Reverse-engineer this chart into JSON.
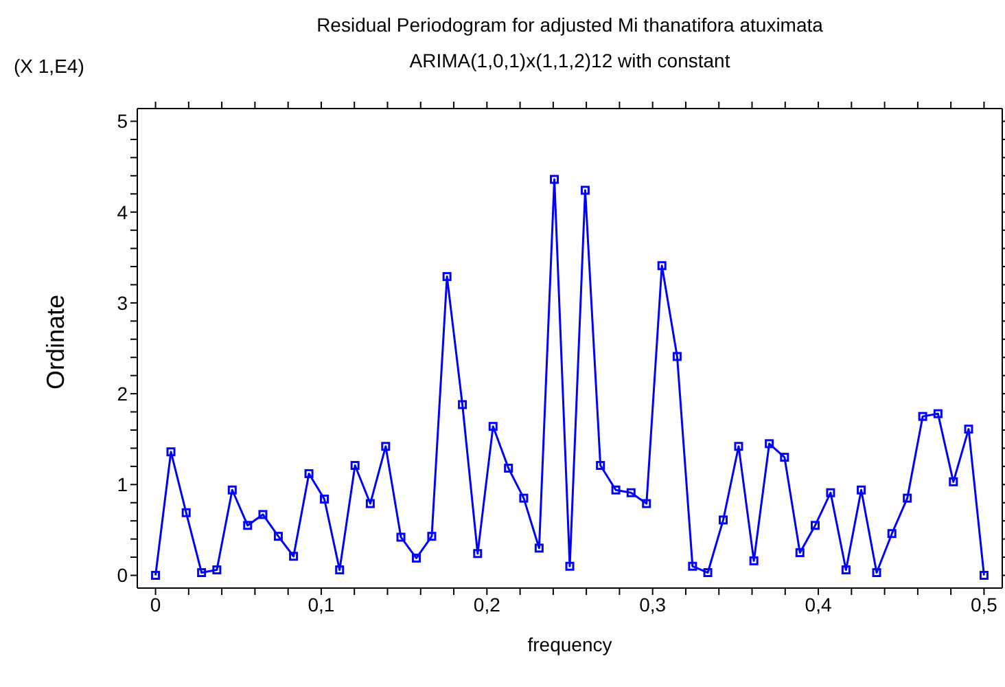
{
  "chart_data": {
    "type": "line",
    "title": "Residual Periodogram for adjusted Mi thanatifora atuximata",
    "subtitle": "ARIMA(1,0,1)x(1,1,2)12 with constant",
    "xlabel": "frequency",
    "ylabel": "Ordinate",
    "annotations": [
      "(X 1,E4)"
    ],
    "x": [
      0,
      0.0093,
      0.0185,
      0.0278,
      0.037,
      0.0463,
      0.0556,
      0.0648,
      0.0741,
      0.0833,
      0.0926,
      0.1019,
      0.1111,
      0.1204,
      0.1296,
      0.1389,
      0.1481,
      0.1574,
      0.1667,
      0.1759,
      0.1852,
      0.1944,
      0.2037,
      0.213,
      0.2222,
      0.2315,
      0.2407,
      0.25,
      0.2593,
      0.2685,
      0.2778,
      0.287,
      0.2963,
      0.3056,
      0.3148,
      0.3241,
      0.3333,
      0.3426,
      0.3519,
      0.3611,
      0.3704,
      0.3796,
      0.3889,
      0.3981,
      0.4074,
      0.4167,
      0.4259,
      0.4352,
      0.4444,
      0.4537,
      0.463,
      0.4722,
      0.4815,
      0.4907,
      0.5
    ],
    "series": [
      {
        "color": "#0000ff",
        "values": [
          0,
          1.36,
          0.69,
          0.03,
          0.06,
          0.94,
          0.55,
          0.67,
          0.43,
          0.21,
          1.12,
          0.84,
          0.06,
          1.21,
          0.79,
          1.42,
          0.42,
          0.19,
          0.43,
          3.29,
          1.88,
          0.24,
          1.64,
          1.18,
          0.85,
          0.3,
          4.36,
          0.1,
          4.24,
          1.21,
          0.94,
          0.91,
          0.79,
          3.41,
          2.41,
          0.1,
          0.03,
          0.61,
          1.42,
          0.16,
          1.45,
          1.3,
          0.25,
          0.55,
          0.91,
          0.06,
          0.94,
          0.03,
          0.46,
          0.85,
          1.75,
          1.78,
          1.03,
          1.61,
          0
        ]
      }
    ],
    "xlim": [
      -0.011,
      0.511
    ],
    "ylim": [
      -0.14,
      5.14
    ],
    "xticks": [
      0,
      {
        "value": 0.02,
        "label": null
      },
      {
        "value": 0.04,
        "label": null
      },
      {
        "value": 0.06,
        "label": null
      },
      {
        "value": 0.08,
        "label": null
      },
      {
        "value": 0.1,
        "label": "0,1"
      },
      {
        "value": 0.12,
        "label": null
      },
      {
        "value": 0.14,
        "label": null
      },
      {
        "value": 0.16,
        "label": null
      },
      {
        "value": 0.18,
        "label": null
      },
      {
        "value": 0.2,
        "label": "0,2"
      },
      {
        "value": 0.22,
        "label": null
      },
      {
        "value": 0.24,
        "label": null
      },
      {
        "value": 0.26,
        "label": null
      },
      {
        "value": 0.28,
        "label": null
      },
      {
        "value": 0.3,
        "label": "0,3"
      },
      {
        "value": 0.32,
        "label": null
      },
      {
        "value": 0.34,
        "label": null
      },
      {
        "value": 0.36,
        "label": null
      },
      {
        "value": 0.38,
        "label": null
      },
      {
        "value": 0.4,
        "label": "0,4"
      },
      {
        "value": 0.42,
        "label": null
      },
      {
        "value": 0.44,
        "label": null
      },
      {
        "value": 0.46,
        "label": null
      },
      {
        "value": 0.48,
        "label": null
      },
      {
        "value": 0.5,
        "label": "0,5"
      }
    ],
    "yticks": [
      0,
      {
        "value": 0.2,
        "label": null
      },
      {
        "value": 0.4,
        "label": null
      },
      {
        "value": 0.6,
        "label": null
      },
      {
        "value": 0.8,
        "label": null
      },
      1,
      {
        "value": 1.2,
        "label": null
      },
      {
        "value": 1.4,
        "label": null
      },
      {
        "value": 1.6,
        "label": null
      },
      {
        "value": 1.8,
        "label": null
      },
      2,
      {
        "value": 2.2,
        "label": null
      },
      {
        "value": 2.4,
        "label": null
      },
      {
        "value": 2.6,
        "label": null
      },
      {
        "value": 2.8,
        "label": null
      },
      3,
      {
        "value": 3.2,
        "label": null
      },
      {
        "value": 3.4,
        "label": null
      },
      {
        "value": 3.6,
        "label": null
      },
      {
        "value": 3.8,
        "label": null
      },
      4,
      {
        "value": 4.2,
        "label": null
      },
      {
        "value": 4.4,
        "label": null
      },
      {
        "value": 4.6,
        "label": null
      },
      {
        "value": 4.8,
        "label": null
      },
      5
    ],
    "grid": false,
    "legend": false,
    "marker": "square",
    "line_style": "solid"
  }
}
